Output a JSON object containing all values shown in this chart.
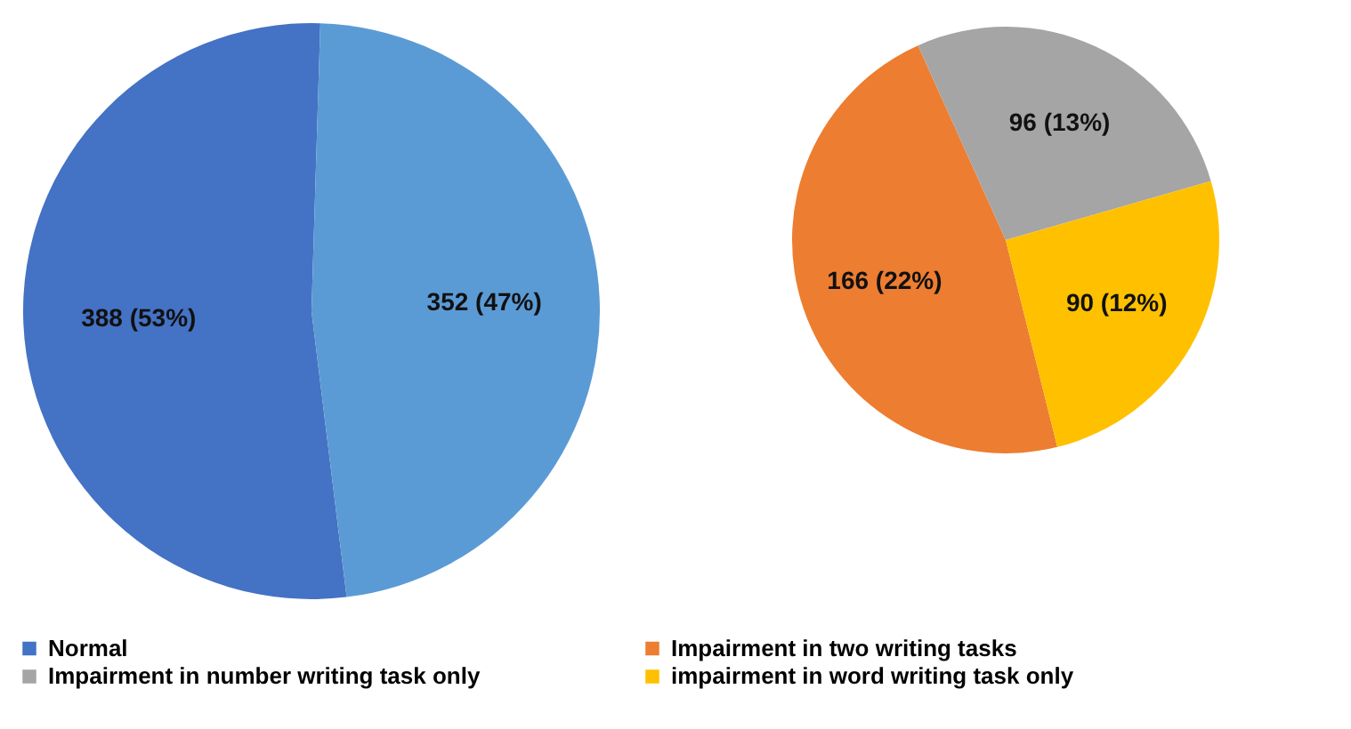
{
  "chart_data": [
    {
      "type": "pie",
      "categories": [
        "Normal",
        null
      ],
      "values": [
        388,
        352
      ],
      "colors": [
        "#4472c4",
        "#5b9bd5"
      ],
      "value_labels": [
        "388 (53%)",
        "352 (47%)"
      ],
      "legend": "bottom"
    },
    {
      "type": "pie",
      "categories": [
        "Impairment in two writing tasks",
        "Impairment in number writing task only",
        "impairment in word writing task only"
      ],
      "values": [
        166,
        96,
        90
      ],
      "colors": [
        "#ed7d31",
        "#a5a5a5",
        "#ffc000"
      ],
      "value_labels": [
        "166 (22%)",
        "96 (13%)",
        "90 (12%)"
      ],
      "legend": "bottom"
    }
  ]
}
